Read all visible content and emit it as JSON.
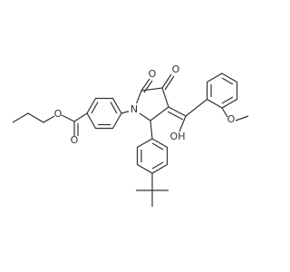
{
  "atoms": [
    "O",
    "O",
    "N",
    "O",
    "O",
    "OH",
    "O"
  ]
}
